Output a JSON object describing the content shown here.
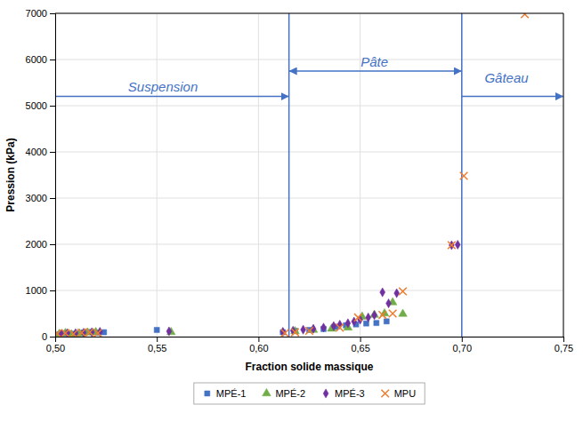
{
  "chart_data": {
    "type": "scatter",
    "x_label": "Fraction solide massique",
    "y_label": "Pression (kPa)",
    "xlim": [
      0.5,
      0.75
    ],
    "ylim": [
      0,
      7000
    ],
    "xticks": [
      {
        "value": 0.5,
        "label": "0,50"
      },
      {
        "value": 0.55,
        "label": "0,55"
      },
      {
        "value": 0.6,
        "label": "0,60"
      },
      {
        "value": 0.65,
        "label": "0,65"
      },
      {
        "value": 0.7,
        "label": "0,70"
      },
      {
        "value": 0.75,
        "label": "0,75"
      }
    ],
    "yticks": [
      0,
      1000,
      2000,
      3000,
      4000,
      5000,
      6000,
      7000
    ],
    "grid": true,
    "legend": "bottom",
    "series": [
      {
        "name": "MPÉ-1",
        "color": "#4472C4",
        "marker": "square",
        "x": [
          0.502,
          0.504,
          0.508,
          0.511,
          0.514,
          0.518,
          0.521,
          0.524,
          0.55,
          0.612,
          0.618,
          0.625,
          0.632,
          0.638,
          0.643,
          0.648,
          0.653,
          0.658,
          0.663
        ],
        "values": [
          50,
          70,
          60,
          75,
          90,
          100,
          85,
          95,
          145,
          95,
          125,
          145,
          165,
          210,
          245,
          265,
          285,
          295,
          330
        ]
      },
      {
        "name": "MPÉ-2",
        "color": "#70AD47",
        "marker": "triangle",
        "x": [
          0.502,
          0.505,
          0.508,
          0.512,
          0.516,
          0.52,
          0.557,
          0.618,
          0.627,
          0.636,
          0.644,
          0.651,
          0.657,
          0.662,
          0.666,
          0.671
        ],
        "values": [
          55,
          75,
          45,
          65,
          85,
          95,
          95,
          115,
          145,
          170,
          195,
          430,
          470,
          500,
          740,
          490
        ]
      },
      {
        "name": "MPÉ-3",
        "color": "#7030A0",
        "marker": "diamond",
        "x": [
          0.503,
          0.506,
          0.51,
          0.514,
          0.518,
          0.522,
          0.556,
          0.612,
          0.617,
          0.622,
          0.627,
          0.632,
          0.637,
          0.64,
          0.644,
          0.647,
          0.65,
          0.654,
          0.657,
          0.661,
          0.664,
          0.668,
          0.695,
          0.698
        ],
        "values": [
          55,
          75,
          75,
          85,
          95,
          105,
          115,
          105,
          130,
          150,
          170,
          195,
          230,
          260,
          290,
          325,
          365,
          415,
          465,
          960,
          720,
          940,
          1980,
          1990
        ]
      },
      {
        "name": "MPU",
        "color": "#ED7D31",
        "marker": "x",
        "x": [
          0.501,
          0.505,
          0.509,
          0.513,
          0.517,
          0.521,
          0.613,
          0.618,
          0.625,
          0.64,
          0.649,
          0.661,
          0.666,
          0.671,
          0.695,
          0.701,
          0.731
        ],
        "values": [
          65,
          75,
          55,
          85,
          95,
          75,
          75,
          95,
          125,
          195,
          415,
          470,
          500,
          980,
          1980,
          3480,
          6980
        ]
      }
    ],
    "vlines": {
      "values": [
        0.615,
        0.7
      ],
      "color": "#4472C4"
    },
    "annotations": [
      {
        "text": "Suspension",
        "x": 0.553,
        "y": 5300,
        "color": "#4472C4",
        "arrow_x": [
          0.5,
          0.615
        ],
        "arrow_y": 5200,
        "arrow": "end"
      },
      {
        "text": "Pâte",
        "x": 0.657,
        "y": 5850,
        "color": "#4472C4",
        "arrow_x": [
          0.615,
          0.7
        ],
        "arrow_y": 5750,
        "arrow": "both"
      },
      {
        "text": "Gâteau",
        "x": 0.722,
        "y": 5500,
        "color": "#4472C4",
        "arrow_x": [
          0.7,
          0.75
        ],
        "arrow_y": 5200,
        "arrow": "end"
      }
    ]
  }
}
